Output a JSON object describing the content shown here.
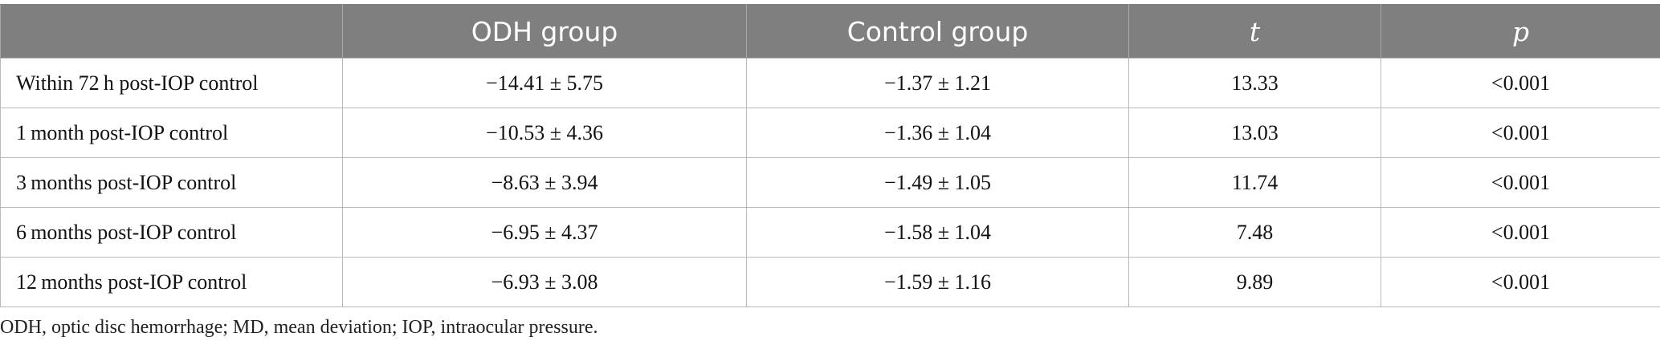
{
  "table": {
    "headers": [
      "",
      "ODH group",
      "Control group",
      "t",
      "p"
    ],
    "rows": [
      {
        "label": "Within 72 h post-IOP control",
        "odh": "−14.41 ± 5.75",
        "control": "−1.37 ± 1.21",
        "t": "13.33",
        "p": "<0.001"
      },
      {
        "label": "1 month post-IOP control",
        "odh": "−10.53 ± 4.36",
        "control": "−1.36 ± 1.04",
        "t": "13.03",
        "p": "<0.001"
      },
      {
        "label": "3 months post-IOP control",
        "odh": "−8.63 ± 3.94",
        "control": "−1.49 ± 1.05",
        "t": "11.74",
        "p": "<0.001"
      },
      {
        "label": "6 months post-IOP control",
        "odh": "−6.95 ± 4.37",
        "control": "−1.58 ± 1.04",
        "t": "7.48",
        "p": "<0.001"
      },
      {
        "label": "12 months post-IOP control",
        "odh": "−6.93 ± 3.08",
        "control": "−1.59 ± 1.16",
        "t": "9.89",
        "p": "<0.001"
      }
    ]
  },
  "footnote": "ODH, optic disc hemorrhage; MD, mean deviation; IOP, intraocular pressure.",
  "colors": {
    "header_bg": "#7f7f7f",
    "header_text": "#ffffff",
    "grid": "#b9b9b9"
  }
}
